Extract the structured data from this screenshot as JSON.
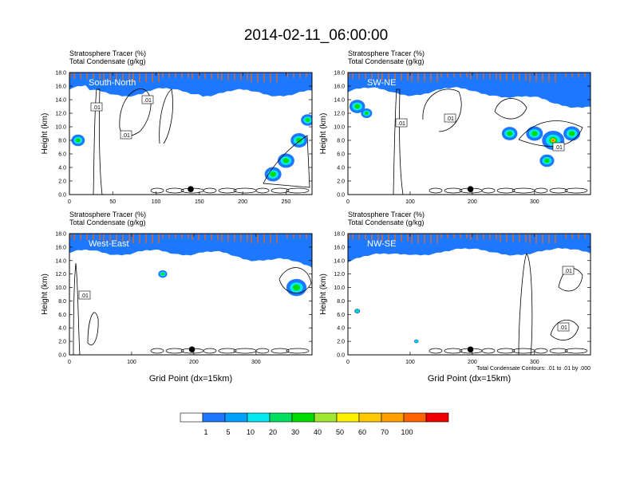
{
  "title": "2014-02-11_06:00:00",
  "chart_data": [
    {
      "type": "heatmap",
      "panel_label": "South-North",
      "left_title_1": "Stratosphere Tracer   (%)",
      "left_title_2": "Total Condensate   (g/kg)",
      "ylabel": "Height (km)",
      "xlabel": "",
      "xlim": [
        0,
        280
      ],
      "ylim": [
        0,
        18
      ],
      "xticks": [
        0,
        50,
        100,
        150,
        200,
        250
      ],
      "yticks": [
        "0.0",
        "2.0",
        "4.0",
        "6.0",
        "8.0",
        "10.0",
        "12.0",
        "14.0",
        "16.0",
        "18.0"
      ],
      "contour_labels": [
        ".01",
        ".01",
        ".01"
      ],
      "marker_x": 140
    },
    {
      "type": "heatmap",
      "panel_label": "SW-NE",
      "left_title_1": "Stratosphere Tracer   (%)",
      "left_title_2": "Total Condensate   (g/kg)",
      "ylabel": "Height (km)",
      "xlabel": "",
      "xlim": [
        0,
        390
      ],
      "ylim": [
        0,
        18
      ],
      "xticks": [
        0,
        100,
        200,
        300
      ],
      "yticks": [
        "0.0",
        "2.0",
        "4.0",
        "6.0",
        "8.0",
        "10.0",
        "12.0",
        "14.0",
        "16.0",
        "18.0"
      ],
      "contour_labels": [
        ".01",
        ".01",
        ".01"
      ],
      "marker_x": 197
    },
    {
      "type": "heatmap",
      "panel_label": "West-East",
      "left_title_1": "Stratosphere Tracer   (%)",
      "left_title_2": "Total Condensate   (g/kg)",
      "ylabel": "Height (km)",
      "xlabel": "Grid Point (dx=15km)",
      "xlim": [
        0,
        390
      ],
      "ylim": [
        0,
        18
      ],
      "xticks": [
        0,
        100,
        200,
        300
      ],
      "yticks": [
        "0.0",
        "2.0",
        "4.0",
        "6.0",
        "8.0",
        "10.0",
        "12.0",
        "14.0",
        "16.0",
        "18.0"
      ],
      "contour_labels": [
        ".01"
      ],
      "marker_x": 197
    },
    {
      "type": "heatmap",
      "panel_label": "NW-SE",
      "left_title_1": "Stratosphere Tracer   (%)",
      "left_title_2": "Total Condensate   (g/kg)",
      "ylabel": "Height (km)",
      "xlabel": "Grid Point (dx=15km)",
      "xlim": [
        0,
        390
      ],
      "ylim": [
        0,
        18
      ],
      "xticks": [
        0,
        100,
        200,
        300
      ],
      "yticks": [
        "0.0",
        "2.0",
        "4.0",
        "6.0",
        "8.0",
        "10.0",
        "12.0",
        "14.0",
        "16.0",
        "18.0"
      ],
      "contour_labels": [
        ".01",
        ".01"
      ],
      "marker_x": 197,
      "contour_info": "Total Condensate Contours: .01 to .01 by .000"
    }
  ],
  "colorbar": {
    "labels": [
      "1",
      "5",
      "10",
      "20",
      "30",
      "40",
      "50",
      "60",
      "70",
      "100"
    ],
    "colors": [
      "#ffffff",
      "#1e78ff",
      "#00a0ff",
      "#00e8f0",
      "#00e060",
      "#00dc00",
      "#a0e632",
      "#fff000",
      "#ffc800",
      "#ffa000",
      "#ff6400",
      "#f00000"
    ]
  }
}
